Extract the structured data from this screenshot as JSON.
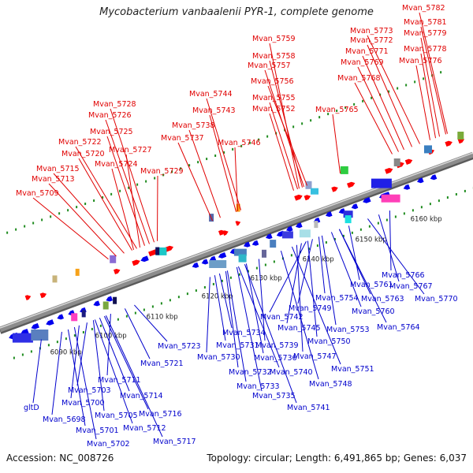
{
  "title": "Mycobacterium vanbaalenii PYR-1, complete genome",
  "footer": {
    "accession": "Accession: NC_008726",
    "stats": "Topology: circular; Length: 6,491,865 bp; Genes: 6,037"
  },
  "colors": {
    "backbone": "#8c8c8c",
    "forward_label": "#e00000",
    "reverse_label": "#0000cc",
    "forward_arrow": "#ff0000",
    "reverse_arrow": "#0000ee",
    "tick": "#1f8c1f"
  },
  "scale": [
    "6090 kbp",
    "6100 kbp",
    "6110 kbp",
    "6120 kbp",
    "6130 kbp",
    "6140 kbp",
    "6150 kbp",
    "6160 kbp"
  ],
  "labels_top": [
    "Mvan_5782",
    "Mvan_5781",
    "Mvan_5779",
    "Mvan_5778",
    "Mvan_5776",
    "Mvan_5773",
    "Mvan_5772",
    "Mvan_5771",
    "Mvan_5769",
    "Mvan_5768",
    "Mvan_5765",
    "Mvan_5759",
    "Mvan_5758",
    "Mvan_5757",
    "Mvan_5756",
    "Mvan_5755",
    "Mvan_5752",
    "Mvan_5744",
    "Mvan_5743",
    "Mvan_5746",
    "Mvan_5738",
    "Mvan_5737",
    "Mvan_5728",
    "Mvan_5726",
    "Mvan_5725",
    "Mvan_5722",
    "Mvan_5727",
    "Mvan_5720",
    "Mvan_5724",
    "Mvan_5715",
    "Mvan_5729",
    "Mvan_5713",
    "Mvan_5709"
  ],
  "labels_bottom": [
    "Mvan_5766",
    "Mvan_5767",
    "Mvan_5770",
    "Mvan_5761",
    "Mvan_5763",
    "Mvan_5760",
    "Mvan_5764",
    "Mvan_5754",
    "Mvan_5749",
    "Mvan_5742",
    "Mvan_5745",
    "Mvan_5753",
    "Mvan_5750",
    "Mvan_5747",
    "Mvan_5751",
    "Mvan_5748",
    "Mvan_5734",
    "Mvan_5731",
    "Mvan_5739",
    "Mvan_5730",
    "Mvan_5736",
    "Mvan_5740",
    "Mvan_5732",
    "Mvan_5733",
    "Mvan_5735",
    "Mvan_5741",
    "Mvan_5723",
    "Mvan_5721",
    "Mvan_5711",
    "Mvan_5703",
    "Mvan_5714",
    "Mvan_5700",
    "Mvan_5705",
    "Mvan_5716",
    "gltD",
    "Mvan_5698",
    "Mvan_5701",
    "Mvan_5712",
    "Mvan_5702",
    "Mvan_5717"
  ]
}
